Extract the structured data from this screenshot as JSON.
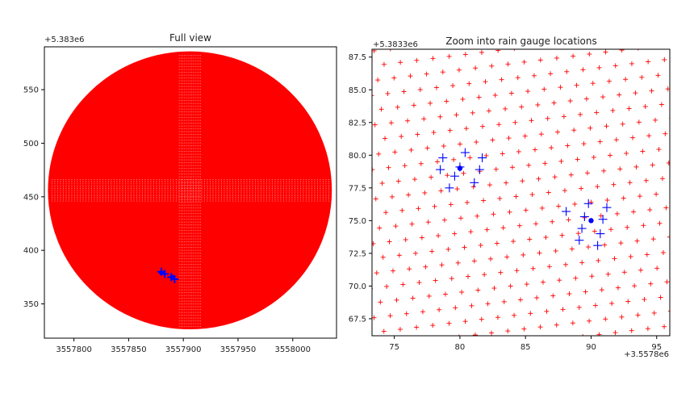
{
  "chart_data": [
    {
      "type": "scatter",
      "title": "Full view",
      "offset_y_label": "+5.383e6",
      "xlabel": "",
      "ylabel": "",
      "xlim": [
        3557773,
        3558040
      ],
      "ylim": [
        5383318,
        5383590
      ],
      "xticks": [
        3557800,
        3557850,
        3557900,
        3557950,
        3558000
      ],
      "xtick_labels": [
        "3557800",
        "3557850",
        "3557900",
        "3557950",
        "3558000"
      ],
      "yticks": [
        350,
        400,
        450,
        500,
        550
      ],
      "ytick_labels": [
        "350",
        "400",
        "450",
        "500",
        "550"
      ],
      "series": [
        {
          "marker": "+",
          "color": "#ff0000",
          "domain": {
            "center": [
              3557906,
              5383456
            ],
            "radius": 129
          }
        },
        {
          "marker": "+",
          "color": "#0000ff",
          "points": [
            [
              3557880,
              5383380
            ],
            [
              3557889,
              5383375
            ],
            [
              3557883,
              5383378
            ],
            [
              3557892,
              5383373
            ]
          ]
        },
        {
          "marker": "o",
          "color": "#0000ff",
          "points": [
            [
              3557880,
              5383379
            ],
            [
              3557890,
              5383375
            ]
          ]
        }
      ],
      "grid": false
    },
    {
      "type": "scatter",
      "title": "Zoom into rain gauge locations",
      "offset_y_label": "+5.3833e6",
      "offset_x_label": "+3.5578e6",
      "xlabel": "",
      "ylabel": "",
      "xlim": [
        73.3,
        96.0
      ],
      "ylim": [
        66.2,
        88.1
      ],
      "xticks": [
        75,
        80,
        85,
        90,
        95
      ],
      "xtick_labels": [
        "75",
        "80",
        "85",
        "90",
        "95"
      ],
      "yticks": [
        67.5,
        70.0,
        72.5,
        75.0,
        77.5,
        80.0,
        82.5,
        85.0,
        87.5
      ],
      "ytick_labels": [
        "67.5",
        "70.0",
        "72.5",
        "75.0",
        "77.5",
        "80.0",
        "82.5",
        "85.0",
        "87.5"
      ],
      "series": [
        {
          "marker": "+",
          "color": "#ff0000",
          "spacing": 1.25,
          "angle_deg": 7
        },
        {
          "marker": "+",
          "color": "#0000ff",
          "points": [
            [
              78.7,
              79.8
            ],
            [
              80.4,
              80.2
            ],
            [
              81.7,
              79.8
            ],
            [
              78.5,
              78.9
            ],
            [
              80.0,
              79.1
            ],
            [
              81.5,
              78.9
            ],
            [
              79.6,
              78.4
            ],
            [
              79.2,
              77.5
            ],
            [
              81.1,
              77.9
            ],
            [
              89.8,
              76.3
            ],
            [
              91.2,
              76.0
            ],
            [
              88.1,
              75.7
            ],
            [
              89.5,
              75.3
            ],
            [
              90.9,
              75.1
            ],
            [
              89.3,
              74.4
            ],
            [
              90.7,
              74.0
            ],
            [
              89.1,
              73.5
            ],
            [
              90.5,
              73.1
            ]
          ]
        },
        {
          "marker": "o",
          "color": "#0000ff",
          "points": [
            [
              80.0,
              79.0
            ],
            [
              90.0,
              75.0
            ]
          ]
        }
      ],
      "grid": false
    }
  ]
}
